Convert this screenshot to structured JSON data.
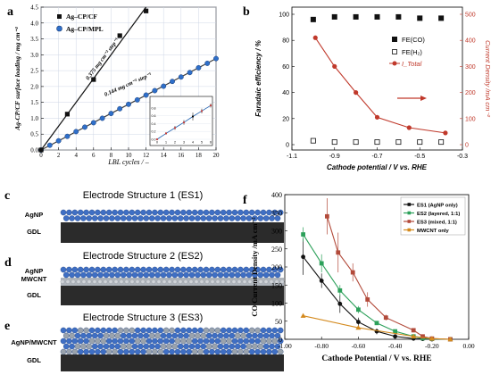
{
  "panel_labels": {
    "a": "a",
    "b": "b",
    "c": "c",
    "d": "d",
    "e": "e",
    "f": "f"
  },
  "es_panels": [
    {
      "title": "Electrode Structure 1 (ES1)",
      "layer_label": "AgNP",
      "base_label": "GDL"
    },
    {
      "title": "Electrode Structure 2 (ES2)",
      "layer_label": "AgNP",
      "mid_label": "MWCNT",
      "base_label": "GDL"
    },
    {
      "title": "Electrode Structure 3 (ES3)",
      "layer_label": "AgNP/MWCNT",
      "base_label": "GDL"
    }
  ],
  "colors": {
    "cf": "#111111",
    "mpl": "#2f6fc9",
    "fit": "#111111",
    "fecoRed": "#c0392b",
    "es1": "#111111",
    "es2": "#2ca05a",
    "es3": "#b24a3a",
    "mwcnt": "#d48a1e",
    "agnp": "#3f6fc4",
    "gdl": "#2b2b2b",
    "mwcntLayer": "#b0b6bd"
  },
  "chart_data": [
    {
      "type": "scatter",
      "id": "a",
      "xlabel": "LBL cycles / –",
      "ylabel": "Ag-CP/CF surface loading / mg cm⁻²",
      "xlim": [
        0,
        20
      ],
      "ylim": [
        0,
        4.5
      ],
      "xticks": [
        "0",
        "2",
        "4",
        "6",
        "8",
        "10",
        "12",
        "14",
        "16",
        "18",
        "20"
      ],
      "yticks": [
        "0.0",
        "0.5",
        "1.0",
        "1.5",
        "2.0",
        "2.5",
        "3.0",
        "3.5",
        "4.0",
        "4.5"
      ],
      "legend": [
        "Ag–CP/CF",
        "Ag–CP/MPL"
      ],
      "annotations": [
        "0.375 mg cm⁻² step⁻¹",
        "0.144 mg cm⁻² step⁻¹"
      ],
      "series": [
        {
          "name": "Ag–CP/CF",
          "marker": "square",
          "x": [
            0,
            3,
            6,
            9,
            12
          ],
          "y": [
            0.0,
            1.13,
            2.22,
            3.6,
            4.38
          ]
        },
        {
          "name": "Ag–CP/MPL",
          "marker": "circle",
          "x": [
            0,
            1,
            2,
            3,
            4,
            5,
            6,
            7,
            8,
            9,
            10,
            11,
            12,
            13,
            14,
            15,
            16,
            17,
            18,
            19,
            20
          ],
          "y": [
            0.0,
            0.15,
            0.29,
            0.43,
            0.58,
            0.72,
            0.86,
            1.0,
            1.15,
            1.3,
            1.44,
            1.58,
            1.73,
            1.87,
            2.01,
            2.16,
            2.3,
            2.44,
            2.59,
            2.73,
            2.88
          ]
        }
      ],
      "fits": [
        {
          "x": [
            0,
            12
          ],
          "y": [
            0,
            4.5
          ]
        },
        {
          "x": [
            0,
            20
          ],
          "y": [
            0,
            2.88
          ]
        }
      ],
      "inset": {
        "xlim": [
          0,
          6
        ],
        "ylim": [
          0,
          1.0
        ],
        "xticks": [
          "0",
          "1",
          "2",
          "3",
          "4",
          "5",
          "6"
        ],
        "yticks": [
          "0.0",
          "0.2",
          "0.4",
          "0.6",
          "0.8"
        ],
        "x": [
          0,
          1,
          2,
          3,
          4,
          5,
          6
        ],
        "y": [
          0.0,
          0.15,
          0.29,
          0.43,
          0.58,
          0.72,
          0.86
        ],
        "err": [
          0.02,
          0.03,
          0.05,
          0.06,
          0.1,
          0.06,
          0.05
        ]
      }
    },
    {
      "type": "scatter",
      "id": "b",
      "xlabel": "Cathode potential / V vs. RHE",
      "ylabel": "Faradaic efficiency / %",
      "y2label": "Current Density /mA cm⁻²",
      "xlim": [
        -1.1,
        -0.3
      ],
      "ylim": [
        0,
        100
      ],
      "y2lim": [
        0,
        500
      ],
      "xticks": [
        "-1.1",
        "-0.9",
        "-0.7",
        "-0.5",
        "-0.3"
      ],
      "yticks": [
        "0",
        "20",
        "40",
        "60",
        "80",
        "100"
      ],
      "y2ticks": [
        "0",
        "100",
        "200",
        "300",
        "400",
        "500"
      ],
      "legend": [
        "FE(CO)",
        "FE(H₂)",
        "I_Total"
      ],
      "series": [
        {
          "name": "FE(CO)",
          "marker": "square-filled",
          "x": [
            -1.0,
            -0.9,
            -0.8,
            -0.7,
            -0.6,
            -0.5,
            -0.4
          ],
          "y": [
            96,
            98,
            98,
            98,
            98,
            97,
            97
          ]
        },
        {
          "name": "FE(H₂)",
          "marker": "square-open",
          "x": [
            -1.0,
            -0.9,
            -0.8,
            -0.7,
            -0.6,
            -0.5,
            -0.4
          ],
          "y": [
            3,
            2,
            2,
            2,
            2,
            2,
            2
          ]
        },
        {
          "name": "I_Total",
          "marker": "circle",
          "axis": "right",
          "x": [
            -0.99,
            -0.9,
            -0.8,
            -0.7,
            -0.55,
            -0.38
          ],
          "y": [
            410,
            300,
            200,
            105,
            65,
            45
          ]
        }
      ]
    },
    {
      "type": "line",
      "id": "f",
      "xlabel": "Cathode Potential / V vs. RHE",
      "ylabel": "CO Current Density /mA cm⁻²",
      "xlim": [
        -1.0,
        0.0
      ],
      "ylim": [
        0,
        400
      ],
      "xticks": [
        "-1.00",
        "-0.80",
        "-0.60",
        "-0.40",
        "-0.20",
        "0.00"
      ],
      "yticks": [
        "0",
        "50",
        "100",
        "150",
        "200",
        "250",
        "300",
        "350",
        "400"
      ],
      "legend": [
        "ES1 (AgNP only)",
        "ES2 (layered, 1:1)",
        "ES3 (mixed, 1:1)",
        "MWCNT only"
      ],
      "series": [
        {
          "name": "ES1 (AgNP only)",
          "marker": "circle",
          "x": [
            -0.9,
            -0.8,
            -0.7,
            -0.6,
            -0.5,
            -0.4,
            -0.3,
            -0.25,
            -0.2,
            -0.1
          ],
          "y": [
            228,
            162,
            98,
            48,
            22,
            8,
            2,
            1,
            0,
            0
          ],
          "err": [
            50,
            20,
            25,
            12,
            8,
            3,
            1,
            1,
            0,
            0
          ]
        },
        {
          "name": "ES2 (layered, 1:1)",
          "marker": "square",
          "x": [
            -0.9,
            -0.8,
            -0.7,
            -0.6,
            -0.5,
            -0.4,
            -0.3,
            -0.25,
            -0.2,
            -0.1
          ],
          "y": [
            290,
            210,
            135,
            82,
            45,
            22,
            8,
            3,
            1,
            0
          ],
          "err": [
            20,
            25,
            15,
            10,
            5,
            3,
            2,
            1,
            0,
            0
          ]
        },
        {
          "name": "ES3 (mixed, 1:1)",
          "marker": "square",
          "x": [
            -0.77,
            -0.71,
            -0.63,
            -0.55,
            -0.45,
            -0.3,
            -0.25,
            -0.2,
            -0.1
          ],
          "y": [
            340,
            240,
            185,
            110,
            60,
            25,
            8,
            2,
            0
          ],
          "err": [
            50,
            55,
            25,
            20,
            8,
            4,
            2,
            1,
            0
          ]
        },
        {
          "name": "MWCNT only",
          "marker": "triangle",
          "x": [
            -0.9,
            -0.6,
            -0.3,
            -0.2,
            -0.1
          ],
          "y": [
            65,
            32,
            8,
            2,
            0
          ],
          "err": [
            5,
            3,
            2,
            1,
            0
          ]
        }
      ]
    }
  ]
}
